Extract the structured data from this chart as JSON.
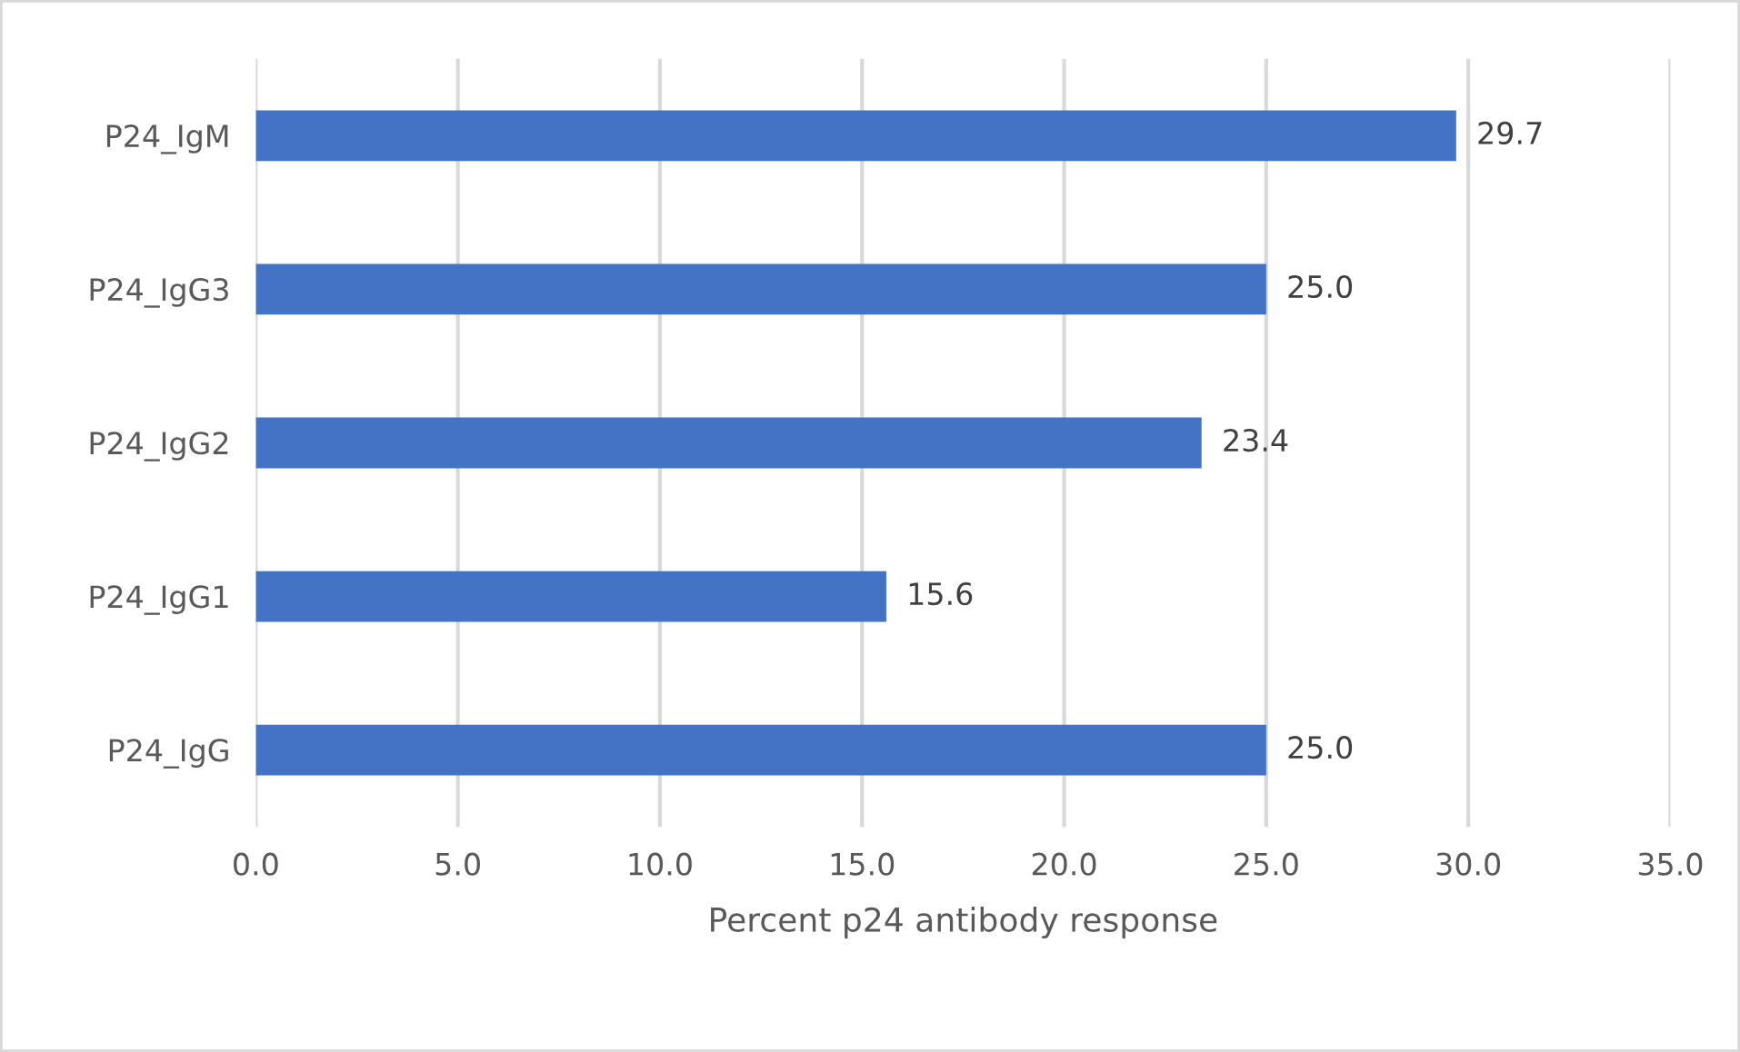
{
  "chart_data": {
    "type": "bar",
    "orientation": "horizontal",
    "categories": [
      "P24_IgM",
      "P24_IgG3",
      "P24_IgG2",
      "P24_IgG1",
      "P24_IgG"
    ],
    "values": [
      29.7,
      25.0,
      23.4,
      15.6,
      25.0
    ],
    "value_labels": [
      "29.7",
      "25.0",
      "23.4",
      "15.6",
      "25.0"
    ],
    "color": "#4472c4",
    "xlabel": "Percent p24 antibody response",
    "xlim": [
      0,
      35
    ],
    "xticks": [
      {
        "value": 0,
        "label": "0.0"
      },
      {
        "value": 5,
        "label": "5.0"
      },
      {
        "value": 10,
        "label": "10.0"
      },
      {
        "value": 15,
        "label": "15.0"
      },
      {
        "value": 20,
        "label": "20.0"
      },
      {
        "value": 25,
        "label": "25.0"
      },
      {
        "value": 30,
        "label": "30.0"
      },
      {
        "value": 35,
        "label": "35.0"
      }
    ],
    "grid": "x"
  }
}
